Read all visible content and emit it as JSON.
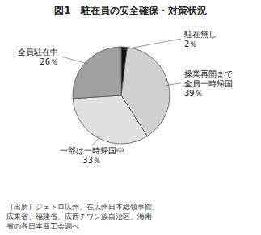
{
  "chart_data": {
    "type": "pie",
    "title": "図1　駐在員の安全確保・対策状況",
    "categories": [
      "駐在無し",
      "操業再開まで\n全員一時帰国",
      "一部は一時帰国中",
      "全員駐在中"
    ],
    "values": [
      2,
      39,
      33,
      26
    ],
    "value_labels": [
      "2％",
      "39％",
      "33％",
      "26％"
    ],
    "colors": [
      "#111111",
      "#d0d0d0",
      "#e0e0e0",
      "#a0a0a0"
    ],
    "data_labels": true,
    "annotations": [
      "（出所）ジェトロ広州、在広州日本総領事館、\n広東省、福建省、広西チワン族自治区、海南\n省の各日本商工会調べ"
    ]
  }
}
